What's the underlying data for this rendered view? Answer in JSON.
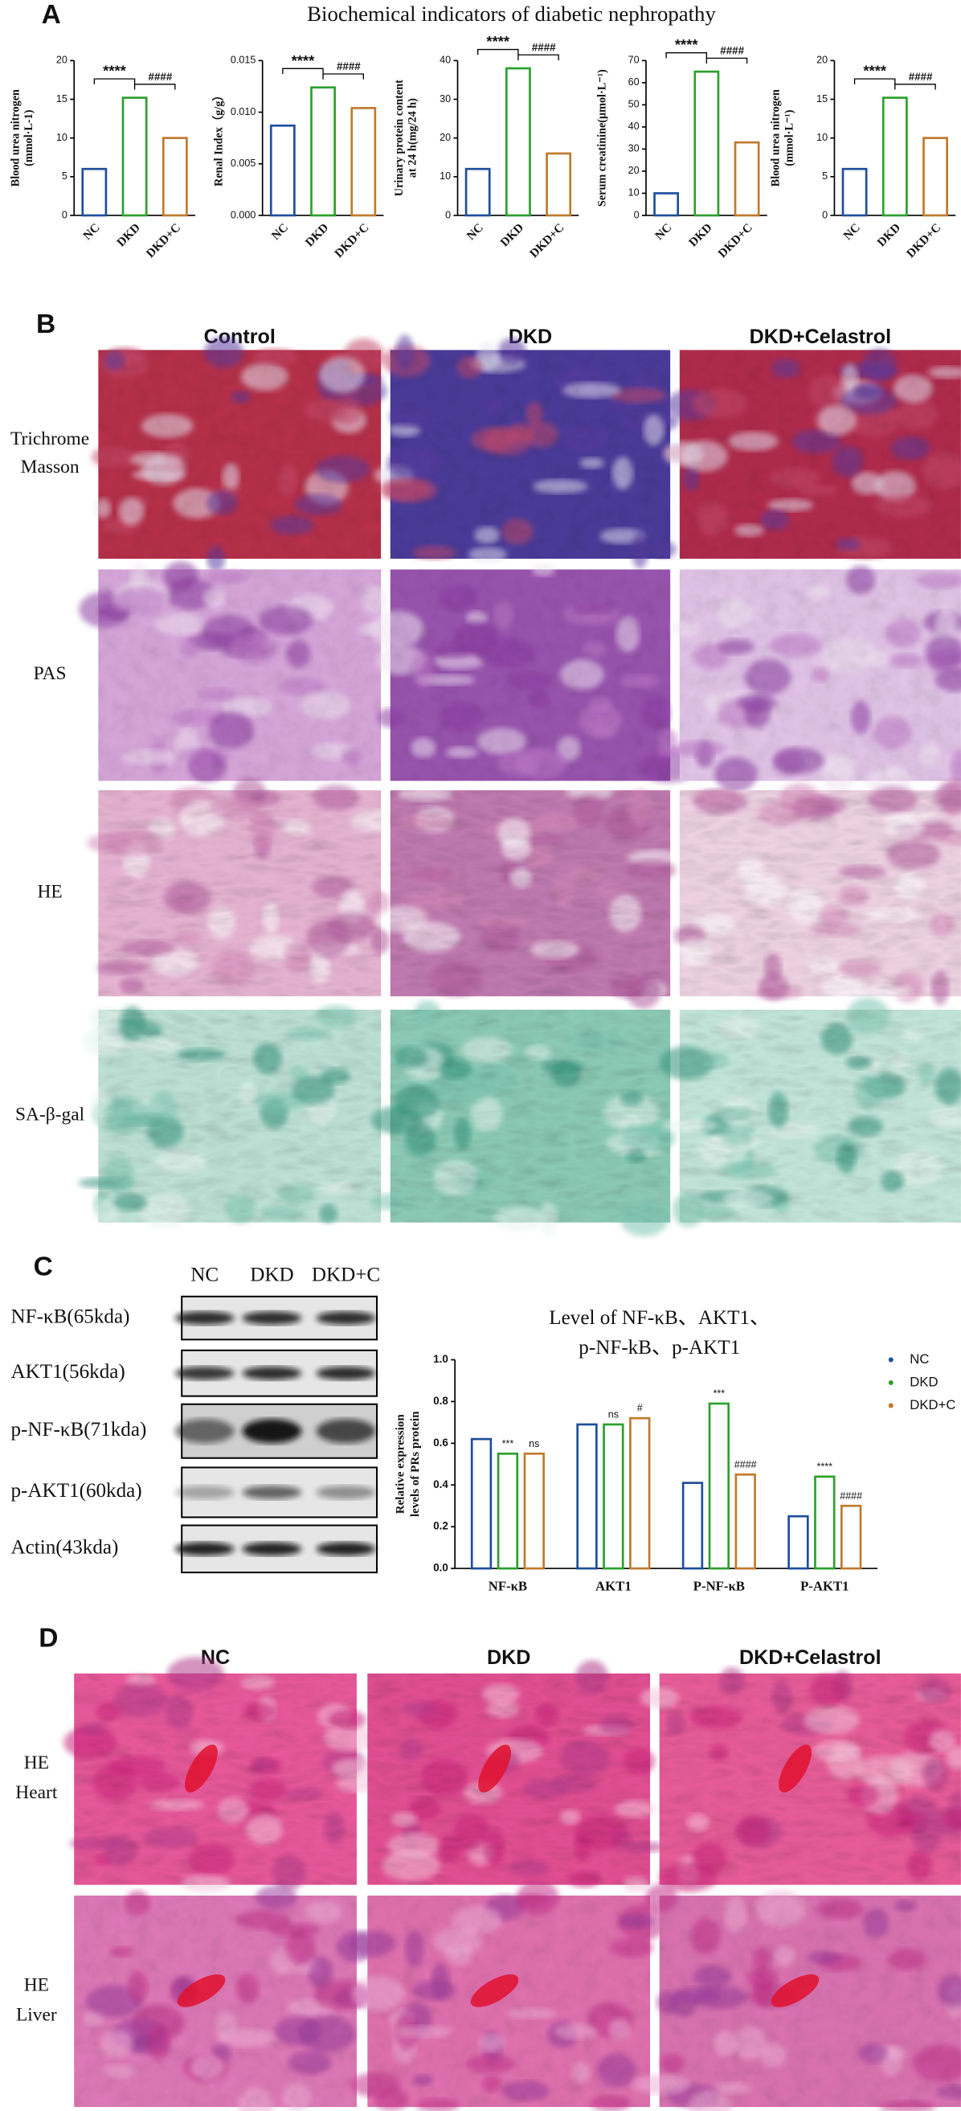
{
  "figure_title": "Biochemical indicators of diabetic nephropathy",
  "panel_labels": [
    "A",
    "B",
    "C",
    "D"
  ],
  "chart_data": [
    {
      "type": "bar",
      "ylabel": [
        "Blood urea nitrogen",
        "(mmol·L-1)"
      ],
      "categories": [
        "NC",
        "DKD",
        "DKD+C"
      ],
      "values": [
        6,
        15.2,
        10
      ],
      "colors": [
        "#1f4e9c",
        "#2ca02c",
        "#c07a2c"
      ],
      "ylim": [
        0,
        20
      ],
      "yticks": [
        0,
        5,
        10,
        15,
        20
      ],
      "annotations": [
        "****",
        "####"
      ]
    },
    {
      "type": "bar",
      "ylabel": [
        "Renal Index（g/g）"
      ],
      "categories": [
        "NC",
        "DKD",
        "DKD+C"
      ],
      "values": [
        0.0087,
        0.0124,
        0.0104
      ],
      "colors": [
        "#1f4e9c",
        "#2ca02c",
        "#c07a2c"
      ],
      "ylim": [
        0,
        0.015
      ],
      "yticks": [
        {
          "value": 0,
          "label": "0.000"
        },
        {
          "value": 0.005,
          "label": "0.005"
        },
        {
          "value": 0.01,
          "label": "0.010"
        },
        {
          "value": 0.015,
          "label": "0.015"
        }
      ],
      "annotations": [
        "****",
        "####"
      ]
    },
    {
      "type": "bar",
      "ylabel": [
        "Urinary protein content",
        "at 24 h(mg/24 h)"
      ],
      "categories": [
        "NC",
        "DKD",
        "DKD+C"
      ],
      "values": [
        12,
        38,
        16
      ],
      "colors": [
        "#1f4e9c",
        "#2ca02c",
        "#c07a2c"
      ],
      "ylim": [
        0,
        40
      ],
      "yticks": [
        0,
        10,
        20,
        30,
        40
      ],
      "annotations": [
        "****",
        "####"
      ]
    },
    {
      "type": "bar",
      "ylabel": [
        "Serum creatinine(μmol·L⁻¹)"
      ],
      "categories": [
        "NC",
        "DKD",
        "DKD+C"
      ],
      "values": [
        10,
        65,
        33
      ],
      "colors": [
        "#1f4e9c",
        "#2ca02c",
        "#c07a2c"
      ],
      "ylim": [
        0,
        70
      ],
      "yticks": [
        0,
        10,
        20,
        30,
        40,
        50,
        60,
        70
      ],
      "annotations": [
        "****",
        "####"
      ]
    },
    {
      "type": "bar",
      "ylabel": [
        "Blood urea nitrogen",
        "(mmol·L⁻¹)"
      ],
      "categories": [
        "NC",
        "DKD",
        "DKD+C"
      ],
      "values": [
        6,
        15.2,
        10
      ],
      "colors": [
        "#1f4e9c",
        "#2ca02c",
        "#c07a2c"
      ],
      "ylim": [
        0,
        20
      ],
      "yticks": [
        0,
        5,
        10,
        15,
        20
      ],
      "annotations": [
        "****",
        "####"
      ]
    },
    {
      "type": "grouped_bar",
      "title": [
        "Level of NF-κB、AKT1、",
        "p-NF-kB、p-AKT1"
      ],
      "ylabel": [
        "Relative expression",
        "levels of PRs protein"
      ],
      "categories": [
        "NF-κB",
        "AKT1",
        "P-NF-κB",
        "P-AKT1"
      ],
      "series": [
        {
          "name": "NC",
          "color": "#1f4e9c",
          "values": [
            0.62,
            0.69,
            0.41,
            0.25
          ]
        },
        {
          "name": "DKD",
          "color": "#2ca02c",
          "values": [
            0.55,
            0.69,
            0.79,
            0.44
          ],
          "annotations": [
            "***",
            "ns",
            "***",
            "****"
          ]
        },
        {
          "name": "DKD+C",
          "color": "#c07a2c",
          "values": [
            0.55,
            0.72,
            0.45,
            0.3
          ],
          "annotations": [
            "ns",
            "#",
            "####",
            "####"
          ]
        }
      ],
      "ylim": [
        0,
        1.0
      ],
      "yticks": [
        {
          "value": 0,
          "label": "0.0"
        },
        0.2,
        0.4,
        0.6,
        0.8,
        {
          "value": 1.0,
          "label": "1.0"
        }
      ],
      "legend": "right"
    }
  ],
  "histology_b": {
    "columns": [
      "Control",
      "DKD",
      "DKD+Celastrol"
    ],
    "rows": [
      [
        "Trichrome",
        "Masson"
      ],
      [
        "PAS"
      ],
      [
        "HE"
      ],
      [
        "SA-β-gal"
      ]
    ]
  },
  "western_blot": {
    "lanes": [
      "NC",
      "DKD",
      "DKD+C"
    ],
    "bands": [
      "NF-κB(65kda)",
      "AKT1(56kda)",
      "p-NF-κB(71kda)",
      "p-AKT1(60kda)",
      "Actin(43kda)"
    ]
  },
  "histology_d": {
    "columns": [
      "NC",
      "DKD",
      "DKD+Celastrol"
    ],
    "rows": [
      [
        "HE",
        "Heart"
      ],
      [
        "HE",
        "Liver"
      ]
    ]
  }
}
